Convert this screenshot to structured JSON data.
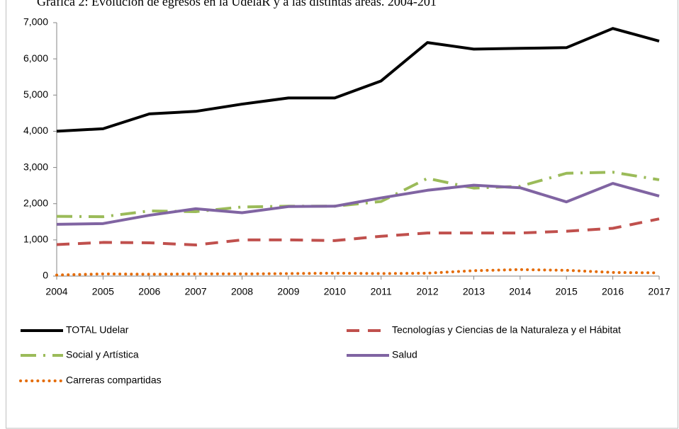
{
  "chart_data": {
    "type": "line",
    "title": "Gráfica 2: Evolución de egresos en la UdelaR y a las distintas áreas. 2004-201",
    "categories": [
      "2004",
      "2005",
      "2006",
      "2007",
      "2008",
      "2009",
      "2010",
      "2011",
      "2012",
      "2013",
      "2014",
      "2015",
      "2016",
      "2017"
    ],
    "series": [
      {
        "name": "TOTAL  Udelar",
        "color": "#000000",
        "dash": "solid",
        "values": [
          4000,
          4070,
          4480,
          4550,
          4750,
          4920,
          4920,
          5390,
          6450,
          6270,
          6290,
          6310,
          6840,
          6490
        ]
      },
      {
        "name": "Tecnologías y Ciencias de la Naturaleza y el Hábitat",
        "color": "#c0504d",
        "dash": "dash",
        "values": [
          870,
          930,
          920,
          860,
          1000,
          1000,
          980,
          1100,
          1190,
          1190,
          1190,
          1240,
          1320,
          1580
        ]
      },
      {
        "name": "Social y Artística",
        "color": "#9bbb59",
        "dash": "dashdot",
        "values": [
          1650,
          1640,
          1800,
          1780,
          1910,
          1930,
          1930,
          2060,
          2700,
          2430,
          2480,
          2840,
          2870,
          2660
        ]
      },
      {
        "name": "Salud",
        "color": "#8064a2",
        "dash": "solid",
        "values": [
          1430,
          1450,
          1680,
          1860,
          1750,
          1920,
          1930,
          2160,
          2370,
          2510,
          2440,
          2050,
          2560,
          2210
        ]
      },
      {
        "name": "Carreras compartidas",
        "color": "#e46c0a",
        "dash": "dot",
        "values": [
          30,
          60,
          50,
          60,
          60,
          70,
          80,
          70,
          80,
          150,
          180,
          160,
          100,
          90
        ]
      }
    ],
    "ylim": [
      0,
      7000
    ],
    "yticks": [
      0,
      {
        "value": 1000,
        "label": "1,000"
      },
      {
        "value": 2000,
        "label": "2,000"
      },
      {
        "value": 3000,
        "label": "3,000"
      },
      {
        "value": 4000,
        "label": "4,000"
      },
      {
        "value": 5000,
        "label": "5,000"
      },
      {
        "value": 6000,
        "label": "6,000"
      },
      {
        "value": 7000,
        "label": "7,000"
      }
    ],
    "grid": false
  }
}
